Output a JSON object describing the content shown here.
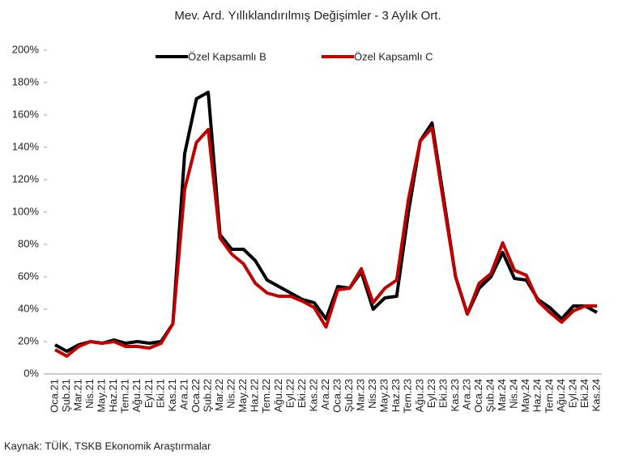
{
  "chart_data": {
    "type": "line",
    "title": "Mev. Ard. Yıllıklandırılmış  Değişimler  - 3 Aylık Ort.",
    "source": "Kaynak: TÜİK, TSKB Ekonomik Araştırmalar",
    "categories": [
      "Oca.21",
      "Şub.21",
      "Mar.21",
      "Nis.21",
      "May.21",
      "Haz.21",
      "Tem.21",
      "Ağu.21",
      "Eyl.21",
      "Eki.21",
      "Kas.21",
      "Ara.21",
      "Oca.22",
      "Şub.22",
      "Mar.22",
      "Nis.22",
      "May.22",
      "Haz.22",
      "Tem.22",
      "Ağu.22",
      "Eyl.22",
      "Eki.22",
      "Kas.22",
      "Ara.22",
      "Oca.23",
      "Şub.23",
      "Mar.23",
      "Nis.23",
      "May.23",
      "Haz.23",
      "Tem.23",
      "Ağu.23",
      "Eyl.23",
      "Eki.23",
      "Kas.23",
      "Ara.23",
      "Oca.24",
      "Şub.24",
      "Mar.24",
      "Nis.24",
      "May.24",
      "Haz.24",
      "Tem.24",
      "Ağu.24",
      "Eyl.24",
      "Eki.24",
      "Kas.24"
    ],
    "series": [
      {
        "name": "Özel Kapsamlı B",
        "color": "#000000",
        "values": [
          18,
          14,
          18,
          20,
          19,
          21,
          19,
          20,
          19,
          20,
          31,
          136,
          170,
          174,
          86,
          77,
          77,
          70,
          58,
          54,
          50,
          46,
          44,
          34,
          54,
          53,
          63,
          40,
          47,
          48,
          100,
          144,
          155,
          108,
          60,
          37,
          53,
          60,
          75,
          59,
          58,
          46,
          41,
          34,
          42,
          42,
          38
        ]
      },
      {
        "name": "Özel Kapsamlı C",
        "color": "#c00000",
        "values": [
          15,
          11,
          17,
          20,
          19,
          20,
          17,
          17,
          16,
          19,
          31,
          114,
          143,
          151,
          84,
          74,
          68,
          56,
          50,
          48,
          48,
          45,
          41,
          29,
          52,
          53,
          65,
          44,
          53,
          58,
          108,
          144,
          152,
          105,
          60,
          37,
          56,
          62,
          81,
          64,
          61,
          45,
          38,
          32,
          39,
          42,
          42
        ]
      }
    ],
    "ylim": [
      0,
      200
    ],
    "yticks": [
      {
        "value": 0,
        "label": "0%"
      },
      {
        "value": 20,
        "label": "20%"
      },
      {
        "value": 40,
        "label": "40%"
      },
      {
        "value": 60,
        "label": "60%"
      },
      {
        "value": 80,
        "label": "80%"
      },
      {
        "value": 100,
        "label": "100%"
      },
      {
        "value": 120,
        "label": "120%"
      },
      {
        "value": 140,
        "label": "140%"
      },
      {
        "value": 160,
        "label": "160%"
      },
      {
        "value": 180,
        "label": "180%"
      },
      {
        "value": 200,
        "label": "200%"
      }
    ],
    "legend": "top"
  }
}
